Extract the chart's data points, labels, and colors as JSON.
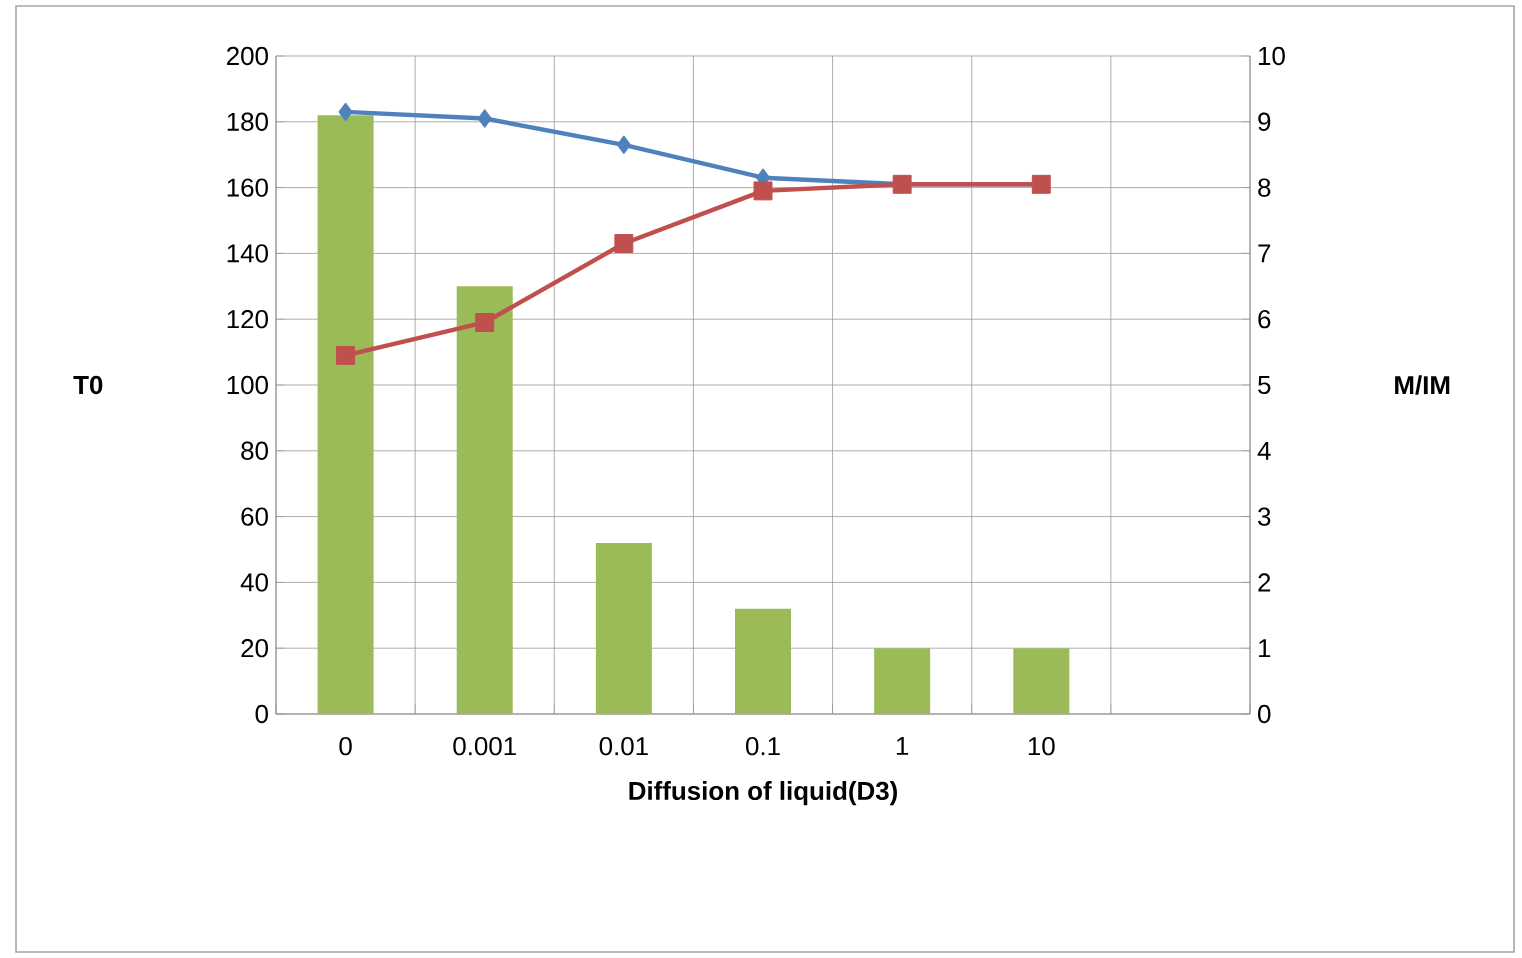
{
  "chart_data": {
    "type": "bar",
    "xlabel": "Diffusion of liquid(D3)",
    "ylabel": "T0",
    "y2label": "M/IM",
    "categories": [
      "0",
      "0.001",
      "0.01",
      "0.1",
      "1",
      "10",
      null
    ],
    "series": [
      {
        "color": "#9bbb59",
        "values": [
          182,
          130,
          52,
          32,
          20,
          20,
          null
        ]
      },
      {
        "type": "line",
        "axis": "y2",
        "color": "#4f81bd",
        "marker": "diamond",
        "values": [
          9.15,
          9.05,
          8.65,
          8.15,
          8.05,
          8.05,
          null
        ]
      },
      {
        "type": "line",
        "axis": "y2",
        "color": "#c0504d",
        "marker": "square",
        "values": [
          5.45,
          5.95,
          7.15,
          7.95,
          8.05,
          8.05,
          null
        ]
      }
    ],
    "ylim": [
      0,
      200
    ],
    "yticks": [
      0,
      20,
      40,
      60,
      80,
      100,
      120,
      140,
      160,
      180,
      200
    ],
    "y2lim": [
      0,
      10
    ],
    "y2ticks": [
      0,
      1,
      2,
      3,
      4,
      5,
      6,
      7,
      8,
      9,
      10
    ],
    "grid": true
  }
}
